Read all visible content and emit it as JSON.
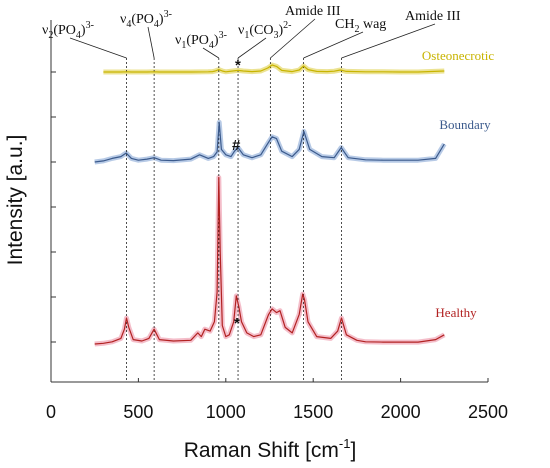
{
  "chart_data": {
    "type": "line",
    "xlabel_base": "Raman Shift [cm",
    "xlabel_sup": "-1",
    "xlabel_close": "]",
    "ylabel": "Intensity [a.u.]",
    "xlim": [
      0,
      2500
    ],
    "xticks": [
      0,
      500,
      1000,
      1500,
      2000,
      2500
    ],
    "y_ticks_unlabeled": true,
    "y_tick_count": 7,
    "grid": false,
    "series": [
      {
        "name": "Osteonecrotic",
        "color": "#c8b400",
        "shade": "#e6da70",
        "x": [
          300,
          400,
          430,
          460,
          550,
          590,
          620,
          800,
          900,
          925,
          940,
          960,
          980,
          1000,
          1040,
          1070,
          1100,
          1150,
          1200,
          1240,
          1265,
          1290,
          1320,
          1380,
          1420,
          1445,
          1470,
          1520,
          1580,
          1620,
          1655,
          1690,
          1800,
          1900,
          2000,
          2100,
          2250
        ],
        "y": [
          0.0,
          0.0,
          0.01,
          0.0,
          0.0,
          0.01,
          0.0,
          0.0,
          0.01,
          0.02,
          0.05,
          0.12,
          0.05,
          0.01,
          0.05,
          0.08,
          0.05,
          0.02,
          0.05,
          0.2,
          0.35,
          0.28,
          0.08,
          0.02,
          0.1,
          0.3,
          0.12,
          0.03,
          0.02,
          0.04,
          0.1,
          0.03,
          0.01,
          0.01,
          0.0,
          0.0,
          0.05
        ]
      },
      {
        "name": "Boundary",
        "color": "#3b5a8c",
        "shade": "#9fb8de",
        "x": [
          250,
          300,
          350,
          400,
          430,
          460,
          500,
          550,
          590,
          630,
          700,
          800,
          850,
          900,
          930,
          950,
          962,
          975,
          1000,
          1030,
          1050,
          1070,
          1100,
          1150,
          1200,
          1245,
          1265,
          1290,
          1320,
          1380,
          1420,
          1447,
          1480,
          1550,
          1620,
          1660,
          1700,
          1800,
          1900,
          2000,
          2100,
          2200,
          2250
        ],
        "y": [
          0.0,
          0.03,
          0.1,
          0.15,
          0.25,
          0.1,
          0.05,
          0.08,
          0.12,
          0.05,
          0.04,
          0.08,
          0.2,
          0.1,
          0.15,
          0.28,
          1.1,
          0.35,
          0.2,
          0.15,
          0.3,
          0.4,
          0.2,
          0.12,
          0.2,
          0.55,
          0.7,
          0.65,
          0.3,
          0.15,
          0.35,
          0.85,
          0.35,
          0.15,
          0.12,
          0.4,
          0.12,
          0.06,
          0.05,
          0.05,
          0.05,
          0.1,
          0.5
        ]
      },
      {
        "name": "Healthy",
        "color": "#b22222",
        "shade": "#f0a8b8",
        "x": [
          250,
          300,
          350,
          400,
          420,
          432,
          445,
          470,
          520,
          560,
          590,
          620,
          700,
          800,
          840,
          860,
          880,
          910,
          935,
          950,
          960,
          968,
          980,
          1000,
          1020,
          1045,
          1060,
          1075,
          1090,
          1120,
          1160,
          1200,
          1245,
          1265,
          1290,
          1310,
          1340,
          1380,
          1420,
          1440,
          1450,
          1470,
          1520,
          1600,
          1640,
          1662,
          1690,
          1750,
          1800,
          1900,
          2000,
          2100,
          2200,
          2250
        ],
        "y": [
          0.0,
          0.02,
          0.06,
          0.15,
          0.4,
          0.7,
          0.45,
          0.12,
          0.08,
          0.15,
          0.4,
          0.12,
          0.08,
          0.1,
          0.3,
          0.2,
          0.4,
          0.35,
          0.6,
          1.4,
          4.5,
          2.5,
          0.5,
          0.2,
          0.25,
          0.6,
          1.3,
          1.0,
          0.6,
          0.3,
          0.2,
          0.25,
          0.8,
          0.95,
          0.85,
          0.9,
          0.45,
          0.3,
          0.8,
          1.35,
          1.2,
          0.6,
          0.2,
          0.15,
          0.35,
          0.7,
          0.25,
          0.1,
          0.06,
          0.05,
          0.05,
          0.05,
          0.12,
          0.25
        ]
      }
    ],
    "peak_lines": [
      {
        "x": 432,
        "label_main": "ν",
        "label_sub": "2",
        "label_rest": "(PO",
        "label_sub2": "4",
        "label_tail": ")",
        "label_sup": "3-"
      },
      {
        "x": 590,
        "label_main": "ν",
        "label_sub": "4",
        "label_rest": "(PO",
        "label_sub2": "4",
        "label_tail": ")",
        "label_sup": "3-"
      },
      {
        "x": 960,
        "label_main": "ν",
        "label_sub": "1",
        "label_rest": "(PO",
        "label_sub2": "4",
        "label_tail": ")",
        "label_sup": "3-"
      },
      {
        "x": 1070,
        "label_main": "ν",
        "label_sub": "1",
        "label_rest": "(CO",
        "label_sub2": "3",
        "label_tail": ")",
        "label_sup": "2-"
      },
      {
        "x": 1255,
        "label_main": "Amide III"
      },
      {
        "x": 1445,
        "label_main": "CH",
        "label_sub": "2",
        "label_rest": " wag"
      },
      {
        "x": 1662,
        "label_main": "Amide III"
      }
    ],
    "markers": [
      {
        "text": "*",
        "series": "Osteonecrotic"
      },
      {
        "text": "#",
        "series": "Boundary"
      },
      {
        "text": "*",
        "series": "Healthy"
      }
    ]
  }
}
